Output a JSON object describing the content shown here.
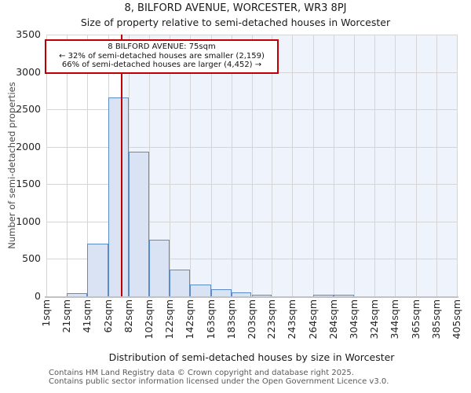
{
  "footer": {
    "line1": "Contains HM Land Registry data © Crown copyright and database right 2025.",
    "line2": "Contains public sector information licensed under the Open Government Licence v3.0."
  },
  "chart_data": {
    "type": "bar",
    "title": "8, BILFORD AVENUE, WORCESTER, WR3 8PJ",
    "subtitle": "Size of property relative to semi-detached houses in Worcester",
    "xlabel": "Distribution of semi-detached houses by size in Worcester",
    "ylabel": "Number of semi-detached properties",
    "ylim": [
      0,
      3500
    ],
    "y_ticks": [
      0,
      500,
      1000,
      1500,
      2000,
      2500,
      3000,
      3500
    ],
    "bin_edges_sqm": [
      1,
      21,
      41,
      62,
      82,
      102,
      122,
      142,
      163,
      183,
      203,
      223,
      243,
      264,
      284,
      304,
      324,
      344,
      365,
      385,
      405
    ],
    "x_tick_labels": [
      "1sqm",
      "21sqm",
      "41sqm",
      "62sqm",
      "82sqm",
      "102sqm",
      "122sqm",
      "142sqm",
      "163sqm",
      "183sqm",
      "203sqm",
      "223sqm",
      "243sqm",
      "264sqm",
      "284sqm",
      "304sqm",
      "324sqm",
      "344sqm",
      "365sqm",
      "385sqm",
      "405sqm"
    ],
    "values": [
      0,
      45,
      700,
      2660,
      1930,
      760,
      360,
      160,
      95,
      48,
      25,
      0,
      0,
      25,
      25,
      0,
      0,
      0,
      0,
      0
    ],
    "marker_sqm": 75,
    "grid": true,
    "legend_position": "none",
    "annotation": {
      "title": "8 BILFORD AVENUE: 75sqm",
      "smaller": "← 32% of semi-detached houses are smaller (2,159)",
      "larger": "66% of semi-detached houses are larger (4,452) →"
    },
    "colors": {
      "bar_fill": "#d9e3f3",
      "bar_stroke": "#5b8cc8",
      "marker": "#c00000",
      "shade": "#eff3fb",
      "grid": "#d5d5d5",
      "axis": "#c2c2c2"
    }
  }
}
